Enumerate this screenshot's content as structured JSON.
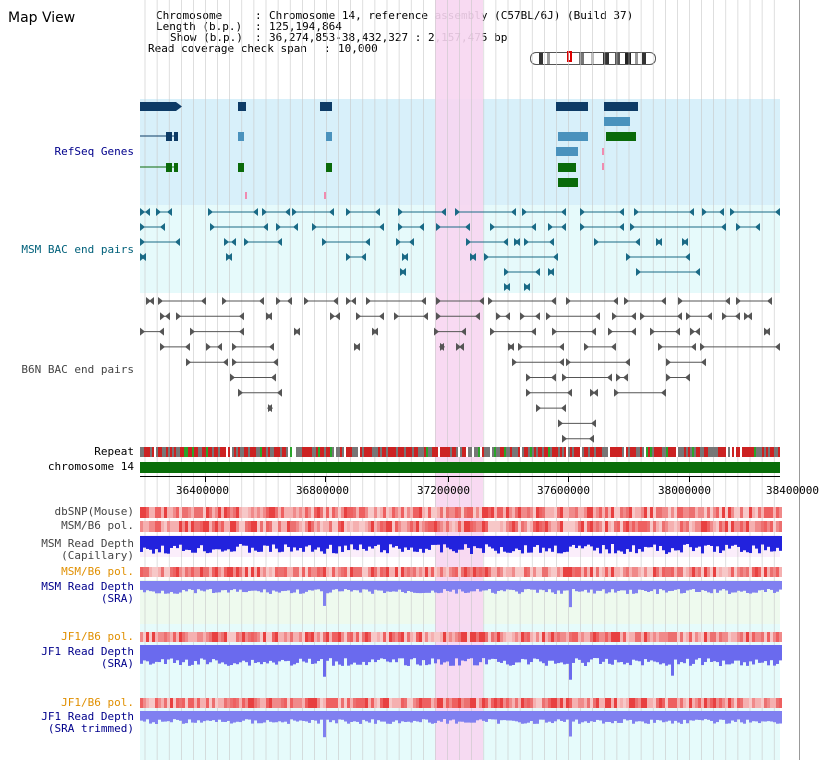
{
  "title": "Map View",
  "info": {
    "chromosome_key": "Chromosome",
    "chromosome_val": "Chromosome 14, reference assembly (C57BL/6J) (Build 37)",
    "length_key": "Length (b.p.)",
    "length_val": "125,194,864",
    "show_key": "Show (b.p.)",
    "show_val": "36,274,853-38,432,327 : 2,157,475 bp",
    "span_key": "Read coverage check span",
    "span_val": "10,000"
  },
  "tracks": {
    "refseq": "RefSeq Genes",
    "msm_bac": "MSM BAC end pairs",
    "b6n_bac": "B6N BAC end pairs",
    "repeat": "Repeat",
    "chromosome": "chromosome 14",
    "dbsnp": "dbSNP(Mouse)",
    "msm_b6_pol": "MSM/B6 pol.",
    "msm_depth_cap_1": "MSM Read Depth",
    "msm_depth_cap_2": "(Capillary)",
    "msm_b6_pol2": "MSM/B6 pol.",
    "msm_depth_sra_1": "MSM Read Depth",
    "msm_depth_sra_2": "(SRA)",
    "jf1_b6_pol": "JF1/B6 pol.",
    "jf1_depth_sra_1": "JF1 Read Depth",
    "jf1_depth_sra_2": "(SRA)",
    "jf1_b6_pol2": "JF1/B6 pol.",
    "jf1_depth_trim_1": "JF1 Read Depth",
    "jf1_depth_trim_2": "(SRA trimmed)"
  },
  "axis": {
    "ticks": [
      "36400000",
      "36800000",
      "37200000",
      "37600000",
      "38000000",
      "38400000"
    ]
  },
  "colors": {
    "refseq_bg": "#d8f0fa",
    "msm_bg": "#e6fafb",
    "highlight": "#f7d6f1",
    "gene_dark": "#0d3b66",
    "gene_mid": "#4a92bd",
    "gene_green": "#0a6a0a",
    "chromosome": "#0a6e0a",
    "depth_blue": "#2222dd",
    "sra_blue": "#8080f0"
  }
}
